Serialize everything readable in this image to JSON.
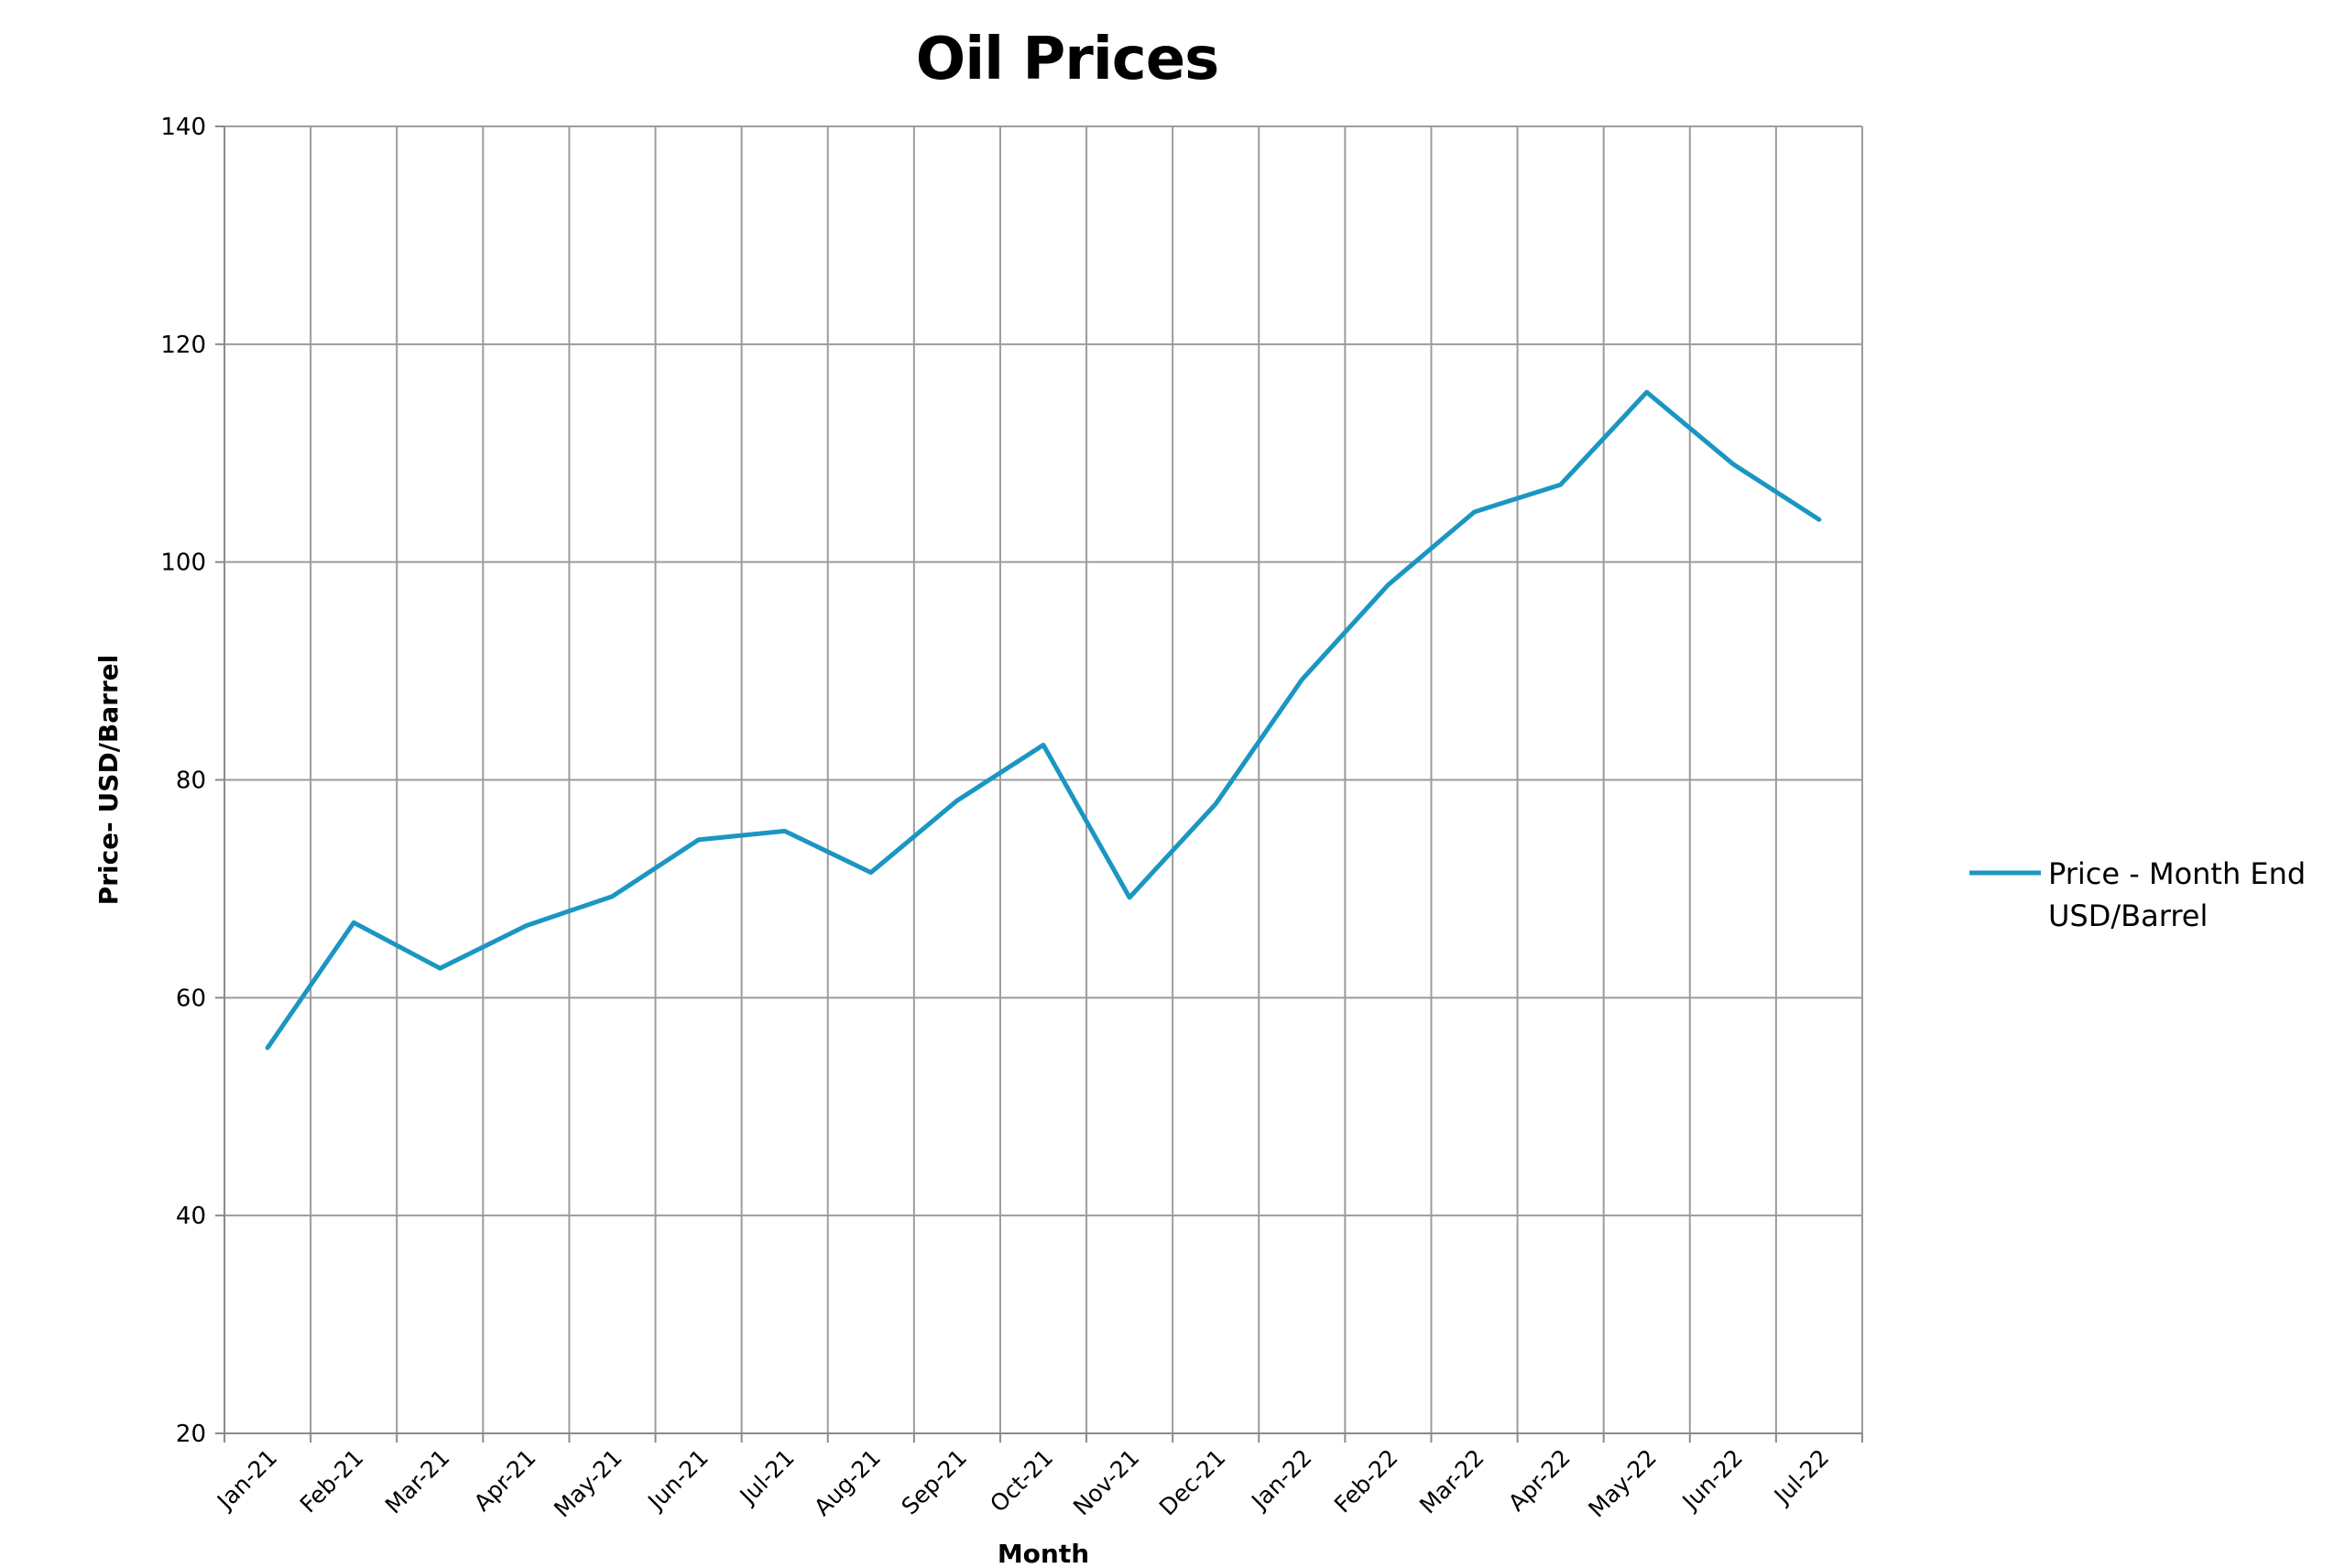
{
  "chart_data": {
    "type": "line",
    "title": "Oil Prices",
    "xlabel": "Month",
    "ylabel": "Price- USD/Barrel",
    "ylim": [
      20,
      140
    ],
    "y_ticks": [
      20,
      40,
      60,
      80,
      100,
      120,
      140
    ],
    "y_tick_labels": [
      "20",
      "40",
      "60",
      "80",
      "100",
      "120",
      "140"
    ],
    "grid": true,
    "legend_position": "right",
    "categories": [
      "Jan-21",
      "Feb-21",
      "Mar-21",
      "Apr-21",
      "May-21",
      "Jun-21",
      "Jul-21",
      "Aug-21",
      "Sep-21",
      "Oct-21",
      "Nov-21",
      "Dec-21",
      "Jan-22",
      "Feb-22",
      "Mar-22",
      "Apr-22",
      "May-22",
      "Jun-22",
      "Jul-22"
    ],
    "series": [
      {
        "name": "Price - Month End USD/Barrel",
        "legend_lines": [
          "Price - Month End",
          "USD/Barrel"
        ],
        "color": "#1b96c2",
        "values": [
          55.4,
          66.9,
          62.7,
          66.6,
          69.3,
          74.5,
          75.3,
          71.5,
          78.1,
          83.2,
          69.2,
          77.8,
          89.2,
          97.9,
          104.6,
          107.1,
          115.6,
          109.0,
          103.9
        ]
      }
    ]
  }
}
